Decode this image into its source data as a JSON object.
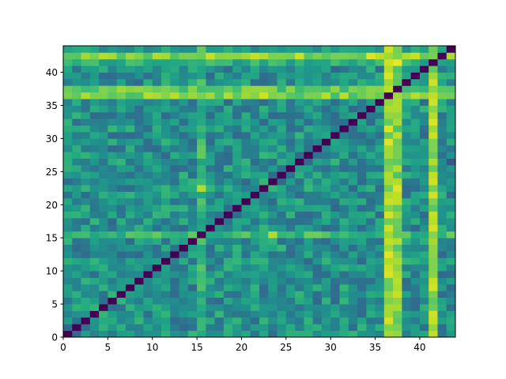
{
  "chart_data": {
    "type": "heatmap",
    "title": "",
    "xlabel": "",
    "ylabel": "",
    "xlim": [
      0,
      44
    ],
    "ylim": [
      0,
      44
    ],
    "n_rows": 44,
    "n_cols": 44,
    "colormap": "viridis",
    "color_range": [
      0,
      1
    ],
    "diagonal_value": 0,
    "background_value": 0.5,
    "x_ticks": [
      0,
      5,
      10,
      15,
      20,
      25,
      30,
      35,
      40
    ],
    "y_ticks": [
      0,
      5,
      10,
      15,
      20,
      25,
      30,
      35,
      40
    ],
    "row_offsets": [
      {
        "row": 42,
        "value": 0.82
      },
      {
        "row": 36,
        "value": 0.8
      },
      {
        "row": 37,
        "value": 0.76
      },
      {
        "row": 15,
        "value": 0.68
      },
      {
        "row": 41,
        "value": 0.62
      },
      {
        "row": 43,
        "value": 0.55
      }
    ],
    "col_offsets": [
      {
        "col": 36,
        "value": 0.86
      },
      {
        "col": 37,
        "value": 0.82
      },
      {
        "col": 41,
        "value": 0.84
      },
      {
        "col": 15,
        "value": 0.66
      }
    ],
    "highlight_cells": [
      {
        "row": 36,
        "col": 22,
        "value": 0.92
      },
      {
        "row": 15,
        "col": 23,
        "value": 0.88
      },
      {
        "row": 22,
        "col": 15,
        "value": 0.88
      },
      {
        "row": 22,
        "col": 37,
        "value": 0.95
      },
      {
        "row": 32,
        "col": 41,
        "value": 0.95
      },
      {
        "row": 41,
        "col": 37,
        "value": 0.97
      },
      {
        "row": 42,
        "col": 34,
        "value": 0.95
      },
      {
        "row": 43,
        "col": 36,
        "value": 0.92
      },
      {
        "row": 26,
        "col": 43,
        "value": 0.25
      },
      {
        "row": 42,
        "col": 26,
        "value": 0.92
      }
    ]
  }
}
